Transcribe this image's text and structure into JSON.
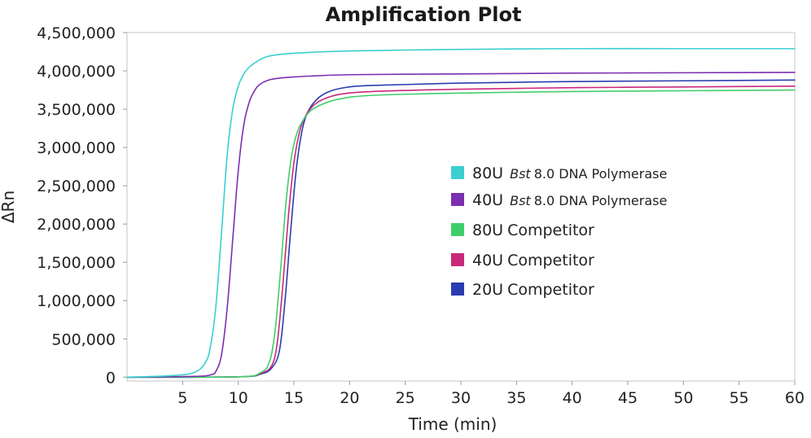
{
  "chart_data": {
    "type": "line",
    "title": "Amplification Plot",
    "xlabel": "Time (min)",
    "ylabel": "ΔRn",
    "xlim": [
      0,
      60
    ],
    "ylim": [
      -50000,
      4500000
    ],
    "x_ticks": [
      5,
      10,
      15,
      20,
      25,
      30,
      35,
      40,
      45,
      50,
      55,
      60
    ],
    "x_tick_labels": [
      "5",
      "10",
      "15",
      "20",
      "25",
      "30",
      "35",
      "40",
      "45",
      "50",
      "55",
      "60"
    ],
    "y_ticks": [
      0,
      500000,
      1000000,
      1500000,
      2000000,
      2500000,
      3000000,
      3500000,
      4000000,
      4500000
    ],
    "y_tick_labels": [
      "0",
      "500,000",
      "1,000,000",
      "1,500,000",
      "2,000,000",
      "2,500,000",
      "3,000,000",
      "3,500,000",
      "4,000,000",
      "4,500,000"
    ],
    "grid": false,
    "legend_position": "right",
    "series": [
      {
        "name": "80U Bst 8.0 DNA Polymerase",
        "legend_prefix": "80U",
        "legend_italic": "Bst",
        "legend_suffix": "8.0 DNA Polymerase",
        "color": "#3ccfcf",
        "x": [
          0,
          4,
          6,
          7,
          7.5,
          8,
          8.5,
          9,
          9.5,
          10,
          10.5,
          11,
          12,
          13,
          15,
          20,
          30,
          40,
          50,
          60
        ],
        "y": [
          0,
          20000,
          60000,
          180000,
          400000,
          950000,
          1900000,
          2900000,
          3500000,
          3800000,
          3960000,
          4050000,
          4150000,
          4200000,
          4230000,
          4260000,
          4280000,
          4290000,
          4290000,
          4290000
        ]
      },
      {
        "name": "40U Bst 8.0 DNA Polymerase",
        "legend_prefix": "40U",
        "legend_italic": "Bst",
        "legend_suffix": "8.0 DNA Polymerase",
        "color": "#7b2fb0",
        "x": [
          0,
          6,
          7.5,
          8,
          8.5,
          9,
          9.5,
          10,
          10.5,
          11,
          11.5,
          12,
          13,
          15,
          20,
          30,
          40,
          50,
          60
        ],
        "y": [
          0,
          10000,
          30000,
          80000,
          300000,
          900000,
          1800000,
          2700000,
          3300000,
          3600000,
          3750000,
          3830000,
          3890000,
          3920000,
          3950000,
          3960000,
          3970000,
          3975000,
          3980000
        ]
      },
      {
        "name": "80U Competitor",
        "legend_prefix": "80U",
        "legend_italic": "",
        "legend_suffix": "Competitor",
        "color": "#3fcf6a",
        "x": [
          0,
          10,
          12,
          12.8,
          13.3,
          13.8,
          14.3,
          14.8,
          15.3,
          15.8,
          16.5,
          17.5,
          19,
          22,
          30,
          40,
          50,
          60
        ],
        "y": [
          0,
          5000,
          60000,
          200000,
          600000,
          1400000,
          2300000,
          2900000,
          3200000,
          3350000,
          3480000,
          3560000,
          3630000,
          3680000,
          3710000,
          3730000,
          3740000,
          3750000
        ]
      },
      {
        "name": "40U Competitor",
        "legend_prefix": "40U",
        "legend_italic": "",
        "legend_suffix": "Competitor",
        "color": "#c8297a",
        "x": [
          0,
          10,
          12,
          13,
          13.5,
          14,
          14.5,
          15,
          15.5,
          16,
          16.7,
          17.5,
          19,
          22,
          30,
          40,
          50,
          60
        ],
        "y": [
          0,
          5000,
          50000,
          150000,
          450000,
          1200000,
          2100000,
          2800000,
          3200000,
          3400000,
          3540000,
          3620000,
          3690000,
          3730000,
          3760000,
          3780000,
          3790000,
          3800000
        ]
      },
      {
        "name": "20U Competitor",
        "legend_prefix": "20U",
        "legend_italic": "",
        "legend_suffix": "Competitor",
        "color": "#2a3db0",
        "x": [
          0,
          10,
          12,
          13,
          13.7,
          14.2,
          14.7,
          15.2,
          15.7,
          16.2,
          17,
          18,
          19.5,
          22,
          30,
          40,
          50,
          60
        ],
        "y": [
          0,
          5000,
          40000,
          120000,
          350000,
          1000000,
          1900000,
          2700000,
          3200000,
          3450000,
          3620000,
          3720000,
          3780000,
          3810000,
          3840000,
          3860000,
          3870000,
          3880000
        ]
      }
    ]
  }
}
